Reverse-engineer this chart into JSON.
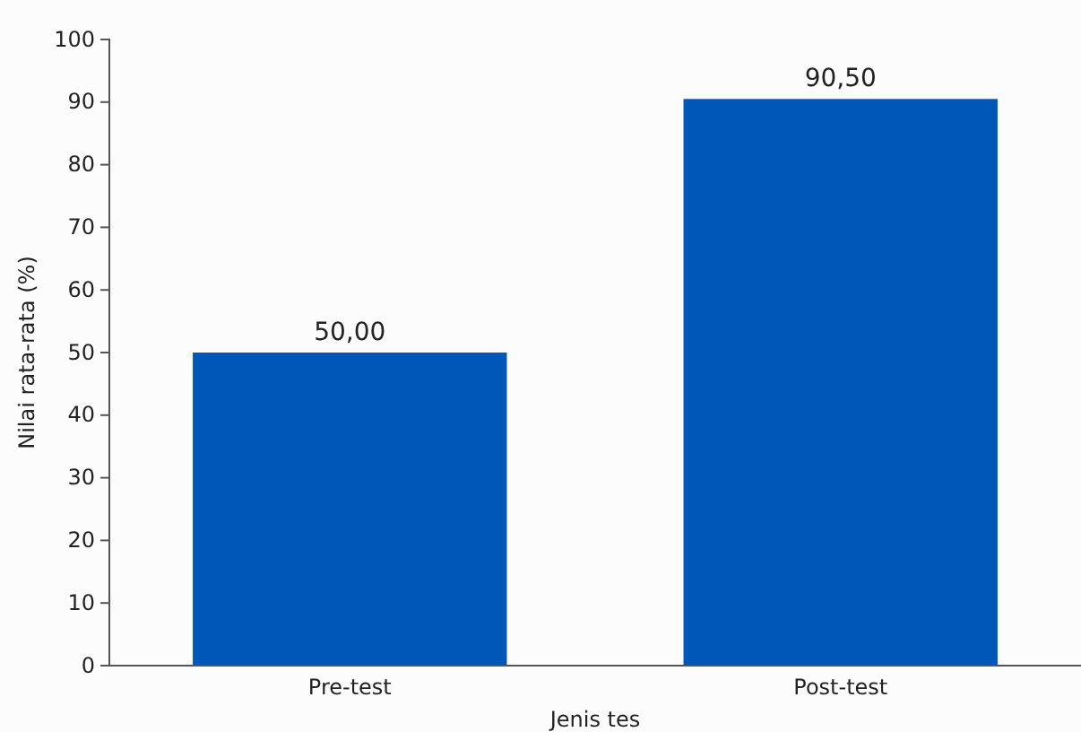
{
  "chart_data": {
    "type": "bar",
    "xlabel": "Jenis tes",
    "ylabel": "Nilai rata-rata (%)",
    "categories": [
      "Pre-test",
      "Post-test"
    ],
    "values": [
      50.0,
      90.5
    ],
    "color": "#0057b8",
    "value_labels": [
      "50,00",
      "90,50"
    ],
    "ylim": [
      0,
      100
    ],
    "yticks": [
      0,
      10,
      20,
      30,
      40,
      50,
      60,
      70,
      80,
      90,
      100
    ],
    "grid": false
  }
}
